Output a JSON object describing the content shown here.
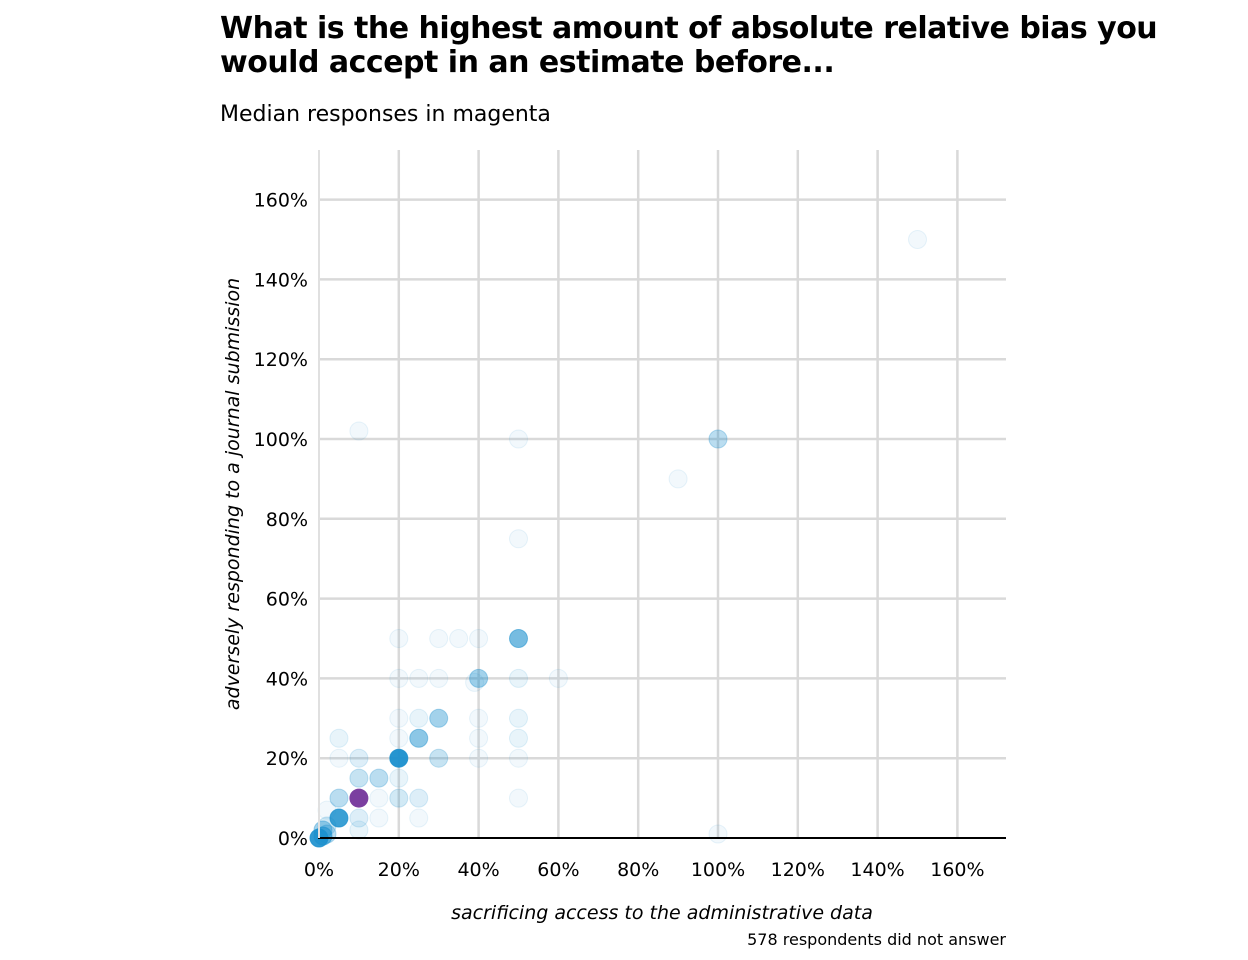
{
  "chart_data": {
    "type": "scatter",
    "title": "What is the highest amount of absolute relative bias you would accept in an estimate before...",
    "subtitle": "Median responses in magenta",
    "xlabel": "sacrificing access to the administrative data",
    "ylabel": "adversely responding to a journal submission",
    "caption": "578 respondents did not answer",
    "xlim": [
      0,
      172
    ],
    "ylim": [
      0,
      172
    ],
    "x_ticks": [
      0,
      20,
      40,
      60,
      80,
      100,
      120,
      140,
      160
    ],
    "y_ticks": [
      0,
      20,
      40,
      60,
      80,
      100,
      120,
      140,
      160
    ],
    "x_tick_labels": [
      "0%",
      "20%",
      "40%",
      "60%",
      "80%",
      "100%",
      "120%",
      "140%",
      "160%"
    ],
    "y_tick_labels": [
      "0%",
      "20%",
      "40%",
      "60%",
      "80%",
      "100%",
      "120%",
      "140%",
      "160%"
    ],
    "grid": true,
    "point_color": "#1a8fcd",
    "median_color": "#7b3fa0",
    "points": [
      {
        "x": 150,
        "y": 150,
        "opacity": 0.06
      },
      {
        "x": 10,
        "y": 102,
        "opacity": 0.06
      },
      {
        "x": 50,
        "y": 100,
        "opacity": 0.06
      },
      {
        "x": 100,
        "y": 100,
        "opacity": 0.3
      },
      {
        "x": 90,
        "y": 90,
        "opacity": 0.06
      },
      {
        "x": 50,
        "y": 75,
        "opacity": 0.06
      },
      {
        "x": 20,
        "y": 50,
        "opacity": 0.06
      },
      {
        "x": 30,
        "y": 50,
        "opacity": 0.06
      },
      {
        "x": 35,
        "y": 50,
        "opacity": 0.06
      },
      {
        "x": 40,
        "y": 50,
        "opacity": 0.06
      },
      {
        "x": 50,
        "y": 50,
        "opacity": 0.6
      },
      {
        "x": 20,
        "y": 40,
        "opacity": 0.06
      },
      {
        "x": 25,
        "y": 40,
        "opacity": 0.06
      },
      {
        "x": 30,
        "y": 40,
        "opacity": 0.06
      },
      {
        "x": 39,
        "y": 39,
        "opacity": 0.06
      },
      {
        "x": 40,
        "y": 40,
        "opacity": 0.4
      },
      {
        "x": 50,
        "y": 40,
        "opacity": 0.1
      },
      {
        "x": 60,
        "y": 40,
        "opacity": 0.06
      },
      {
        "x": 20,
        "y": 30,
        "opacity": 0.06
      },
      {
        "x": 25,
        "y": 30,
        "opacity": 0.1
      },
      {
        "x": 30,
        "y": 30,
        "opacity": 0.4
      },
      {
        "x": 40,
        "y": 30,
        "opacity": 0.06
      },
      {
        "x": 50,
        "y": 30,
        "opacity": 0.1
      },
      {
        "x": 5,
        "y": 25,
        "opacity": 0.1
      },
      {
        "x": 20,
        "y": 25,
        "opacity": 0.06
      },
      {
        "x": 25,
        "y": 25,
        "opacity": 0.5
      },
      {
        "x": 40,
        "y": 25,
        "opacity": 0.06
      },
      {
        "x": 50,
        "y": 25,
        "opacity": 0.1
      },
      {
        "x": 5,
        "y": 20,
        "opacity": 0.06
      },
      {
        "x": 10,
        "y": 20,
        "opacity": 0.15
      },
      {
        "x": 20,
        "y": 20,
        "opacity": 0.95
      },
      {
        "x": 30,
        "y": 20,
        "opacity": 0.25
      },
      {
        "x": 40,
        "y": 20,
        "opacity": 0.06
      },
      {
        "x": 50,
        "y": 20,
        "opacity": 0.06
      },
      {
        "x": 10,
        "y": 15,
        "opacity": 0.25
      },
      {
        "x": 15,
        "y": 15,
        "opacity": 0.3
      },
      {
        "x": 20,
        "y": 15,
        "opacity": 0.1
      },
      {
        "x": 5,
        "y": 10,
        "opacity": 0.3
      },
      {
        "x": 15,
        "y": 10,
        "opacity": 0.06
      },
      {
        "x": 20,
        "y": 10,
        "opacity": 0.2
      },
      {
        "x": 25,
        "y": 10,
        "opacity": 0.15
      },
      {
        "x": 50,
        "y": 10,
        "opacity": 0.06
      },
      {
        "x": 2,
        "y": 7,
        "opacity": 0.06
      },
      {
        "x": 5,
        "y": 5,
        "opacity": 0.85
      },
      {
        "x": 10,
        "y": 5,
        "opacity": 0.15
      },
      {
        "x": 15,
        "y": 5,
        "opacity": 0.06
      },
      {
        "x": 25,
        "y": 5,
        "opacity": 0.06
      },
      {
        "x": 2,
        "y": 3,
        "opacity": 0.2
      },
      {
        "x": 1,
        "y": 2,
        "opacity": 0.4
      },
      {
        "x": 2,
        "y": 1,
        "opacity": 0.3
      },
      {
        "x": 10,
        "y": 2,
        "opacity": 0.1
      },
      {
        "x": 100,
        "y": 1,
        "opacity": 0.06
      },
      {
        "x": 0,
        "y": 0,
        "opacity": 0.9
      },
      {
        "x": 1,
        "y": 0.5,
        "opacity": 0.6
      }
    ],
    "medians": [
      {
        "x": 10,
        "y": 10
      }
    ]
  }
}
